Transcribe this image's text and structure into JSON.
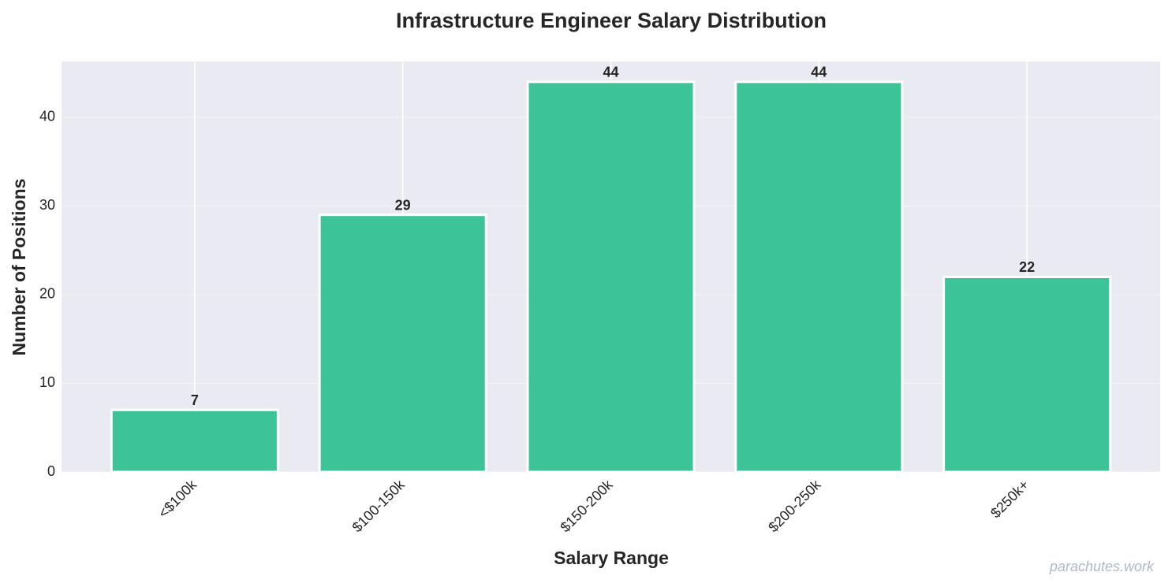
{
  "chart_data": {
    "type": "bar",
    "title": "Infrastructure Engineer Salary Distribution",
    "xlabel": "Salary Range",
    "ylabel": "Number of Positions",
    "watermark": "parachutes.work",
    "categories": [
      "<$100k",
      "$100-150k",
      "$150-200k",
      "$200-250k",
      "$250k+"
    ],
    "values": [
      7,
      29,
      44,
      44,
      22
    ],
    "color": "#3cc397",
    "ylim": [
      0,
      46.3
    ],
    "yticks": [
      0,
      10,
      20,
      30,
      40
    ],
    "grid": true
  }
}
